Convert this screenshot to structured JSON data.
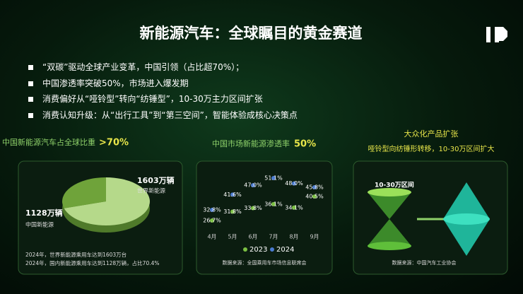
{
  "header": {
    "title": "新能源汽车：全球瞩目的黄金赛道"
  },
  "bullets": [
    "“双碳”驱动全球产业变革，中国引领（占比超70%）；",
    "中国渗透率突破50%，市场进入爆发期",
    "消费偏好从“哑铃型”转向“纺锤型”，10-30万主力区间扩张",
    "消费认知升级：从“出行工具”到“第三空间”，智能体验成核心决策点"
  ],
  "panels": [
    {
      "heading": "中国新能源汽车占全球比重",
      "highlight": ">70%",
      "pie": {
        "world": {
          "value": 1603,
          "label": "1603万辆",
          "name": "世界新能源"
        },
        "china": {
          "value": 1128,
          "label": "1128万辆",
          "name": "中国新能源"
        }
      },
      "notes": [
        "2024年，世界新能源乘用车达到1603万台",
        "2024年，国内新能源乘用车达到1128万辆，占比70.4%"
      ]
    },
    {
      "heading": "中国市场新能源渗透率",
      "highlight": "50%",
      "categories": [
        "4月",
        "5月",
        "6月",
        "7月",
        "8月",
        "9月"
      ],
      "series": [
        {
          "name": "2023",
          "color": "#7bc043",
          "values": [
            26.7,
            31.8,
            33.8,
            36.1,
            34.1,
            40.5
          ],
          "value_labels": [
            "26.7%",
            "31.8%",
            "33.8%",
            "36.1%",
            "34.1%",
            "40.5%"
          ]
        },
        {
          "name": "2024",
          "color": "#4a7bd0",
          "values": [
            32.8,
            41.6,
            47.0,
            51.1,
            48.0,
            45.8
          ],
          "value_labels": [
            "32.8%",
            "41.6%",
            "47.0%",
            "51.1%",
            "48.0%",
            "45.8%"
          ]
        }
      ],
      "source": "数据来源：全国乘用车市场信息联席会"
    },
    {
      "heading": "大众化产品扩张",
      "subheading": "哑铃型向纺锤形转移，10-30万区间扩大",
      "tag": "10-30万区间",
      "source": "数据来源：中国汽车工业协会"
    }
  ]
}
